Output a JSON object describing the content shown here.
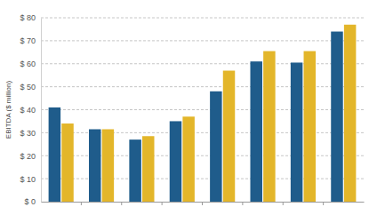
{
  "chart_data": {
    "type": "bar",
    "ylabel": "EBITDA ($ million)",
    "categories": [
      null,
      null,
      null,
      null,
      null,
      null,
      null,
      null
    ],
    "series": [
      {
        "color": "#1f5c8b",
        "values": [
          41,
          31.5,
          27,
          35,
          48,
          61,
          60.5,
          74
        ]
      },
      {
        "color": "#e3b62a",
        "values": [
          34,
          31.5,
          28.5,
          37,
          57,
          65.5,
          65.5,
          77
        ]
      }
    ],
    "ylim": [
      0,
      80
    ],
    "yticks": [
      {
        "value": 0,
        "label": "$ 0"
      },
      {
        "value": 10,
        "label": "$ 10"
      },
      {
        "value": 20,
        "label": "$ 20"
      },
      {
        "value": 30,
        "label": "$ 30"
      },
      {
        "value": 40,
        "label": "$ 40"
      },
      {
        "value": 50,
        "label": "$ 50"
      },
      {
        "value": 60,
        "label": "$ 60"
      },
      {
        "value": 70,
        "label": "$ 70"
      },
      {
        "value": 80,
        "label": "$ 80"
      }
    ],
    "grid": true
  }
}
